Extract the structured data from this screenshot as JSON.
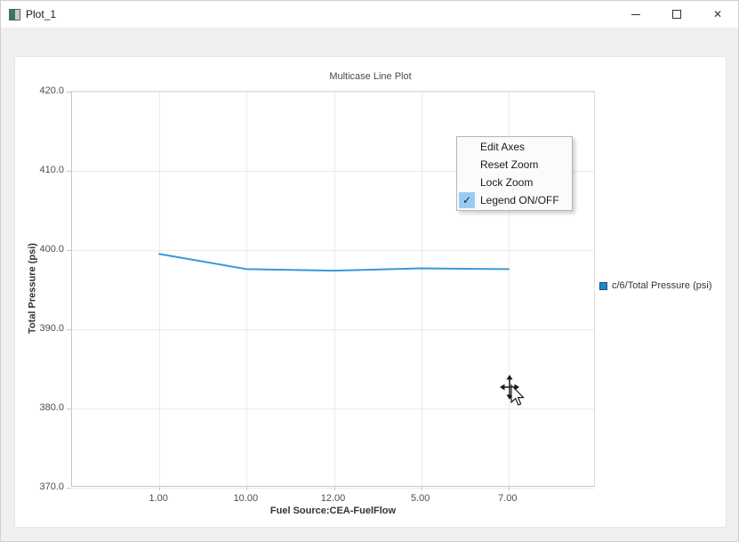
{
  "window": {
    "title": "Plot_1"
  },
  "icons": {
    "checkmark": "✓",
    "close": "✕",
    "app_icon": "plot-thumbnail-icon"
  },
  "context_menu": {
    "items": [
      {
        "label": "Edit Axes",
        "checked": false
      },
      {
        "label": "Reset Zoom",
        "checked": false
      },
      {
        "label": "Lock Zoom",
        "checked": false
      },
      {
        "label": "Legend ON/OFF",
        "checked": true
      }
    ]
  },
  "legend": {
    "entries": [
      {
        "label": "c/6/Total Pressure (psi)",
        "marker_color": "#2089cb",
        "marker_border": "#11557e"
      }
    ]
  },
  "chart_data": {
    "type": "line",
    "title": "Multicase Line Plot",
    "xlabel": "Fuel Source:CEA-FuelFlow",
    "ylabel": "Total Pressure (psi)",
    "categories": [
      "1.00",
      "10.00",
      "12.00",
      "5.00",
      "7.00"
    ],
    "series": [
      {
        "name": "c/6/Total Pressure (psi)",
        "color": "#3a99d8",
        "values": [
          399.5,
          397.6,
          397.4,
          397.7,
          397.6
        ]
      }
    ],
    "ylim": [
      370,
      420
    ],
    "yticks": [
      420,
      410,
      400,
      390,
      380,
      370
    ],
    "ytick_decimals": 1,
    "grid": true,
    "legend_position": "right-outside"
  },
  "colors": {
    "window_background": "#efefef",
    "panel_background": "#ffffff",
    "gridline": "#ebebeb",
    "line": "#3a99d8",
    "menu_check_highlight": "#98ccf5"
  }
}
